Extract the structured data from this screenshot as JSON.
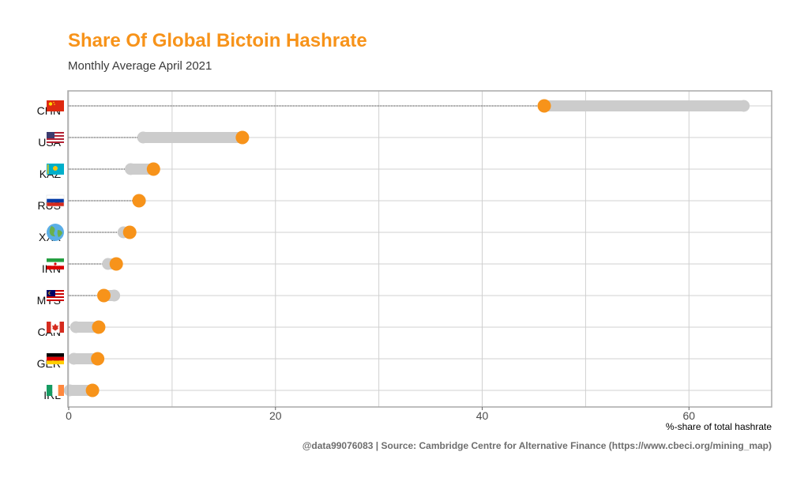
{
  "title": "Share Of Global Bictoin Hashrate",
  "subtitle": "Monthly Average April 2021",
  "caption": "@data99076083 | Source: Cambridge Centre for Alternative Finance (https://www.cbeci.org/mining_map)",
  "colors": {
    "accent": "#f7931a",
    "range": "#cccccc",
    "grid": "#d0d0d0",
    "panel_border": "#a9a9a9"
  },
  "chart_data": {
    "type": "dumbbell",
    "title": "Share Of Global Bictoin Hashrate",
    "subtitle": "Monthly Average April 2021",
    "xlabel": "%-share of total hashrate",
    "ylabel": "",
    "xlim": [
      0,
      68
    ],
    "xticks": [
      0,
      20,
      40,
      60
    ],
    "grid": true,
    "categories": [
      "CHN",
      "USA",
      "KAZ",
      "RUS",
      "XXX",
      "IRN",
      "MYS",
      "CAN",
      "GER",
      "IRL"
    ],
    "flags": [
      "flag-china-icon",
      "flag-usa-icon",
      "flag-kazakhstan-icon",
      "flag-russia-icon",
      "globe-icon",
      "flag-iran-icon",
      "flag-malaysia-icon",
      "flag-canada-icon",
      "flag-germany-icon",
      "flag-ireland-icon"
    ],
    "series": [
      {
        "values": [
          65.3,
          7.2,
          6.0,
          6.9,
          5.3,
          3.8,
          4.4,
          0.7,
          0.5,
          0.1
        ]
      },
      {
        "values": [
          46.0,
          16.8,
          8.2,
          6.8,
          5.9,
          4.6,
          3.4,
          2.9,
          2.8,
          2.3
        ]
      }
    ]
  }
}
